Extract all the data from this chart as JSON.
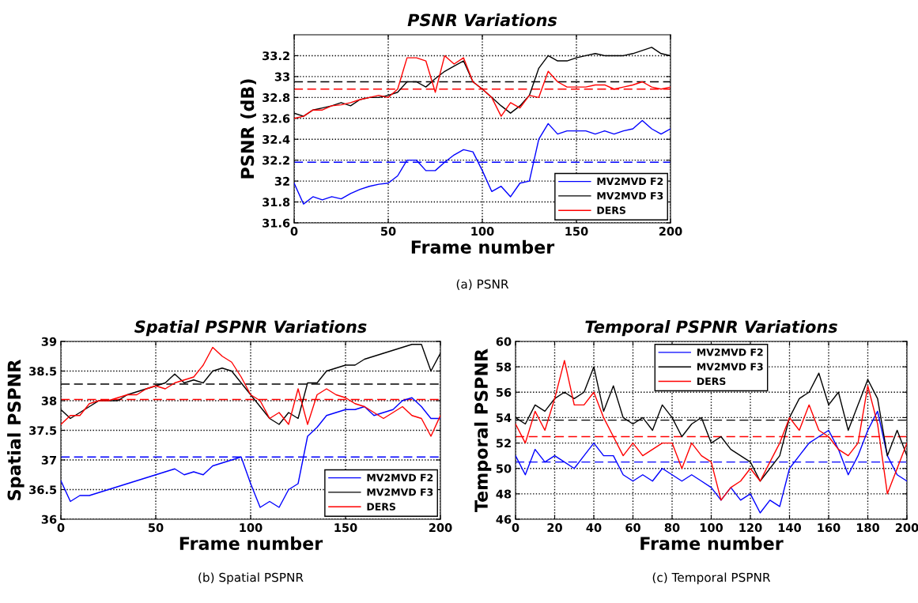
{
  "chart_data": [
    {
      "type": "line",
      "title": "PSNR Variations",
      "xlabel": "Frame number",
      "ylabel": "PSNR (dB)",
      "annotations": [
        "(a) PSNR"
      ],
      "x": [
        0,
        5,
        10,
        15,
        20,
        25,
        30,
        35,
        40,
        45,
        50,
        55,
        60,
        65,
        70,
        75,
        80,
        85,
        90,
        95,
        100,
        105,
        110,
        115,
        120,
        125,
        130,
        135,
        140,
        145,
        150,
        155,
        160,
        165,
        170,
        175,
        180,
        185,
        190,
        195,
        200
      ],
      "series": [
        {
          "name": "MV2MVD F2",
          "color": "#0000ff",
          "values": [
            31.98,
            31.78,
            31.85,
            31.82,
            31.85,
            31.83,
            31.88,
            31.92,
            31.95,
            31.97,
            31.98,
            32.05,
            32.2,
            32.2,
            32.1,
            32.1,
            32.18,
            32.25,
            32.3,
            32.28,
            32.1,
            31.9,
            31.95,
            31.85,
            31.98,
            32.0,
            32.4,
            32.55,
            32.45,
            32.48,
            32.48,
            32.48,
            32.45,
            32.48,
            32.45,
            32.48,
            32.5,
            32.58,
            32.5,
            32.45,
            32.5
          ]
        },
        {
          "name": "MV2MVD F3",
          "color": "#000000",
          "values": [
            32.65,
            32.62,
            32.68,
            32.7,
            32.72,
            32.75,
            32.72,
            32.78,
            32.8,
            32.8,
            32.82,
            32.85,
            32.95,
            32.95,
            32.9,
            32.98,
            33.05,
            33.1,
            33.15,
            32.95,
            32.88,
            32.8,
            32.72,
            32.65,
            32.72,
            32.82,
            33.08,
            33.2,
            33.15,
            33.15,
            33.18,
            33.2,
            33.22,
            33.2,
            33.2,
            33.2,
            33.22,
            33.25,
            33.28,
            33.22,
            33.2
          ]
        },
        {
          "name": "DERS",
          "color": "#ff0000",
          "values": [
            32.6,
            32.62,
            32.68,
            32.68,
            32.72,
            32.73,
            32.75,
            32.78,
            32.8,
            32.82,
            32.8,
            32.88,
            33.18,
            33.18,
            33.15,
            32.85,
            33.2,
            33.12,
            33.18,
            32.95,
            32.88,
            32.8,
            32.62,
            32.75,
            32.7,
            32.82,
            32.8,
            33.05,
            32.95,
            32.9,
            32.9,
            32.9,
            32.92,
            32.92,
            32.88,
            32.9,
            32.92,
            32.95,
            32.9,
            32.88,
            32.9
          ]
        }
      ],
      "ref_lines": [
        {
          "axis": "y",
          "value": 32.95,
          "color": "#000000",
          "line_style": "dashed"
        },
        {
          "axis": "y",
          "value": 32.88,
          "color": "#ff0000",
          "line_style": "dashed"
        },
        {
          "axis": "y",
          "value": 32.18,
          "color": "#0000ff",
          "line_style": "dashed"
        }
      ],
      "xlim": [
        0,
        200
      ],
      "xticks": [
        0,
        50,
        100,
        150,
        200
      ],
      "ylim": [
        31.6,
        33.4
      ],
      "yticks": [
        31.6,
        31.8,
        32,
        32.2,
        32.4,
        32.6,
        32.8,
        33,
        33.2
      ],
      "grid": true,
      "legend": "bottom right",
      "marker": "none",
      "line_style": "solid"
    },
    {
      "type": "line",
      "title": "Spatial PSPNR Variations",
      "xlabel": "Frame number",
      "ylabel": "Spatial PSPNR",
      "annotations": [
        "(b) Spatial PSPNR"
      ],
      "x": [
        0,
        5,
        10,
        15,
        20,
        25,
        30,
        35,
        40,
        45,
        50,
        55,
        60,
        65,
        70,
        75,
        80,
        85,
        90,
        95,
        100,
        105,
        110,
        115,
        120,
        125,
        130,
        135,
        140,
        145,
        150,
        155,
        160,
        165,
        170,
        175,
        180,
        185,
        190,
        195,
        200
      ],
      "series": [
        {
          "name": "MV2MVD F2",
          "color": "#0000ff",
          "values": [
            36.65,
            36.3,
            36.4,
            36.4,
            36.45,
            36.5,
            36.55,
            36.6,
            36.65,
            36.7,
            36.75,
            36.8,
            36.85,
            36.75,
            36.8,
            36.75,
            36.9,
            36.95,
            37.0,
            37.05,
            36.6,
            36.2,
            36.3,
            36.2,
            36.5,
            36.6,
            37.4,
            37.55,
            37.75,
            37.8,
            37.85,
            37.85,
            37.9,
            37.75,
            37.8,
            37.85,
            38.0,
            38.05,
            37.9,
            37.7,
            37.7
          ]
        },
        {
          "name": "MV2MVD F3",
          "color": "#000000",
          "values": [
            37.85,
            37.7,
            37.8,
            37.9,
            38.0,
            38.0,
            38.0,
            38.1,
            38.15,
            38.2,
            38.25,
            38.3,
            38.45,
            38.3,
            38.35,
            38.3,
            38.5,
            38.55,
            38.5,
            38.3,
            38.1,
            37.9,
            37.7,
            37.6,
            37.8,
            37.7,
            38.3,
            38.3,
            38.5,
            38.55,
            38.6,
            38.6,
            38.7,
            38.75,
            38.8,
            38.85,
            38.9,
            38.95,
            38.95,
            38.5,
            38.8
          ]
        },
        {
          "name": "DERS",
          "color": "#ff0000",
          "values": [
            37.6,
            37.75,
            37.75,
            37.95,
            38.0,
            38.0,
            38.05,
            38.1,
            38.1,
            38.2,
            38.25,
            38.2,
            38.3,
            38.35,
            38.4,
            38.6,
            38.9,
            38.75,
            38.65,
            38.4,
            38.1,
            38.0,
            37.7,
            37.8,
            37.6,
            38.2,
            37.6,
            38.1,
            38.2,
            38.1,
            38.05,
            37.95,
            37.9,
            37.8,
            37.7,
            37.8,
            37.9,
            37.75,
            37.7,
            37.4,
            37.75
          ]
        }
      ],
      "ref_lines": [
        {
          "axis": "y",
          "value": 38.28,
          "color": "#000000",
          "line_style": "dashed"
        },
        {
          "axis": "y",
          "value": 38.02,
          "color": "#ff0000",
          "line_style": "dashed"
        },
        {
          "axis": "y",
          "value": 37.05,
          "color": "#0000ff",
          "line_style": "dashed"
        }
      ],
      "xlim": [
        0,
        200
      ],
      "xticks": [
        0,
        50,
        100,
        150,
        200
      ],
      "ylim": [
        36,
        39
      ],
      "yticks": [
        36,
        36.5,
        37,
        37.5,
        38,
        38.5,
        39
      ],
      "grid": true,
      "legend": "bottom right",
      "marker": "none",
      "line_style": "solid"
    },
    {
      "type": "line",
      "title": "Temporal PSPNR Variations",
      "xlabel": "Frame number",
      "ylabel": "Temporal PSPNR",
      "annotations": [
        "(c) Temporal PSPNR"
      ],
      "x": [
        0,
        5,
        10,
        15,
        20,
        25,
        30,
        35,
        40,
        45,
        50,
        55,
        60,
        65,
        70,
        75,
        80,
        85,
        90,
        95,
        100,
        105,
        110,
        115,
        120,
        125,
        130,
        135,
        140,
        145,
        150,
        155,
        160,
        165,
        170,
        175,
        180,
        185,
        190,
        195,
        200
      ],
      "series": [
        {
          "name": "MV2MVD F2",
          "color": "#0000ff",
          "values": [
            51,
            49.5,
            51.5,
            50.5,
            51,
            50.5,
            50,
            51,
            52,
            51,
            51,
            49.5,
            49,
            49.5,
            49,
            50,
            49.5,
            49,
            49.5,
            49,
            48.5,
            47.5,
            48.5,
            47.5,
            48,
            46.5,
            47.5,
            47,
            50,
            51,
            52,
            52.5,
            53,
            51.5,
            49.5,
            51,
            53,
            54.5,
            51,
            49.5,
            49
          ]
        },
        {
          "name": "MV2MVD F3",
          "color": "#000000",
          "values": [
            54,
            53.5,
            55,
            54.5,
            55.5,
            56,
            55.5,
            56,
            58,
            54.5,
            56.5,
            54,
            53.5,
            54,
            53,
            55,
            54,
            52.5,
            53.5,
            54,
            52,
            52.5,
            51.5,
            51,
            50.5,
            49,
            50,
            51,
            54,
            55.5,
            56,
            57.5,
            55,
            56,
            53,
            55,
            57,
            55.5,
            51,
            53,
            51
          ]
        },
        {
          "name": "DERS",
          "color": "#ff0000",
          "values": [
            53.5,
            52,
            54.5,
            53,
            55.5,
            58.5,
            55,
            55,
            56,
            54,
            52.5,
            51,
            52,
            51,
            51.5,
            52,
            52,
            50,
            52,
            51,
            50.5,
            47.5,
            48.5,
            49,
            50,
            49,
            50.5,
            52,
            54,
            53,
            55,
            53,
            52.5,
            51.5,
            51,
            52,
            56.5,
            53.5,
            48,
            50,
            52
          ]
        }
      ],
      "ref_lines": [
        {
          "axis": "y",
          "value": 53.8,
          "color": "#000000",
          "line_style": "dashed"
        },
        {
          "axis": "y",
          "value": 52.5,
          "color": "#ff0000",
          "line_style": "dashed"
        },
        {
          "axis": "y",
          "value": 50.5,
          "color": "#0000ff",
          "line_style": "dashed"
        }
      ],
      "xlim": [
        0,
        200
      ],
      "xticks": [
        0,
        20,
        40,
        60,
        80,
        100,
        120,
        140,
        160,
        180,
        200
      ],
      "ylim": [
        46,
        60
      ],
      "yticks": [
        46,
        48,
        50,
        52,
        54,
        56,
        58,
        60
      ],
      "grid": true,
      "legend": "top",
      "marker": "none",
      "line_style": "solid"
    }
  ]
}
